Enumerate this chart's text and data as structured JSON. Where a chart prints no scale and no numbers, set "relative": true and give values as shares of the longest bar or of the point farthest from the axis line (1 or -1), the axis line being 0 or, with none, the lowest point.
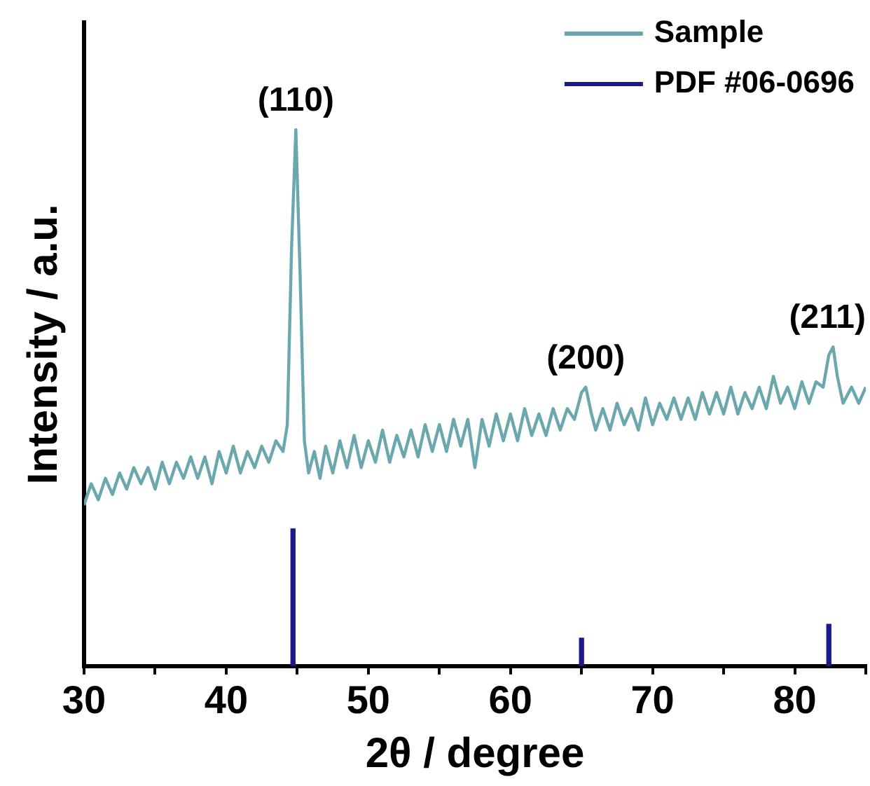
{
  "chart_data": {
    "type": "line",
    "xlabel": "2θ / degree",
    "ylabel": "Intensity / a.u.",
    "relative": true,
    "legend": "top right",
    "grid": false,
    "tick_labels": "x",
    "marker": "none",
    "line_style": "solid",
    "xlim": [
      30,
      85
    ],
    "xticks": [
      30,
      {
        "value": 35,
        "label": null
      },
      40,
      {
        "value": 45,
        "label": null
      },
      50,
      {
        "value": 55,
        "label": null
      },
      60,
      {
        "value": 65,
        "label": null
      },
      70,
      {
        "value": 75,
        "label": null
      },
      80,
      {
        "value": 85,
        "label": null
      }
    ],
    "series": [
      {
        "name": "Sample",
        "color": "#6aa8ae",
        "x": [
          30,
          30.5,
          31,
          31.5,
          32,
          32.5,
          33,
          33.5,
          34,
          34.5,
          35,
          35.5,
          36,
          36.5,
          37,
          37.5,
          38,
          38.5,
          39,
          39.5,
          40,
          40.5,
          41,
          41.5,
          42,
          42.5,
          43,
          43.5,
          44,
          44.3,
          44.6,
          44.9,
          45.2,
          45.5,
          45.8,
          46.2,
          46.6,
          47,
          47.5,
          48,
          48.5,
          49,
          49.5,
          50,
          50.5,
          51,
          51.5,
          52,
          52.5,
          53,
          53.5,
          54,
          54.5,
          55,
          55.5,
          56,
          56.5,
          57,
          57.5,
          58,
          58.5,
          59,
          59.5,
          60,
          60.5,
          61,
          61.5,
          62,
          62.5,
          63,
          63.5,
          64,
          64.5,
          65,
          65.3,
          65.7,
          66,
          66.5,
          67,
          67.5,
          68,
          68.5,
          69,
          69.5,
          70,
          70.5,
          71,
          71.5,
          72,
          72.5,
          73,
          73.5,
          74,
          74.5,
          75,
          75.5,
          76,
          76.5,
          77,
          77.5,
          78,
          78.5,
          79,
          79.5,
          80,
          80.5,
          81,
          81.5,
          82,
          82.4,
          82.7,
          83,
          83.4,
          84,
          84.5,
          85
        ],
        "values": [
          0.3,
          0.34,
          0.31,
          0.35,
          0.32,
          0.36,
          0.33,
          0.37,
          0.34,
          0.37,
          0.33,
          0.38,
          0.34,
          0.38,
          0.35,
          0.39,
          0.35,
          0.39,
          0.34,
          0.4,
          0.36,
          0.41,
          0.36,
          0.4,
          0.37,
          0.41,
          0.38,
          0.42,
          0.4,
          0.45,
          0.78,
          1,
          0.73,
          0.42,
          0.36,
          0.4,
          0.35,
          0.41,
          0.36,
          0.42,
          0.37,
          0.43,
          0.37,
          0.42,
          0.38,
          0.44,
          0.38,
          0.43,
          0.39,
          0.44,
          0.39,
          0.45,
          0.4,
          0.45,
          0.4,
          0.46,
          0.41,
          0.46,
          0.37,
          0.46,
          0.41,
          0.47,
          0.42,
          0.47,
          0.42,
          0.48,
          0.43,
          0.47,
          0.43,
          0.48,
          0.44,
          0.48,
          0.46,
          0.51,
          0.52,
          0.47,
          0.44,
          0.48,
          0.44,
          0.49,
          0.45,
          0.48,
          0.44,
          0.5,
          0.45,
          0.49,
          0.46,
          0.5,
          0.46,
          0.5,
          0.46,
          0.51,
          0.47,
          0.51,
          0.47,
          0.52,
          0.47,
          0.51,
          0.48,
          0.52,
          0.48,
          0.54,
          0.49,
          0.52,
          0.48,
          0.53,
          0.49,
          0.53,
          0.52,
          0.58,
          0.595,
          0.54,
          0.49,
          0.52,
          0.49,
          0.52
        ]
      },
      {
        "name": "PDF #06-0696",
        "type": "bar",
        "color": "#1a1a8c",
        "x": [
          44.7,
          65.0,
          82.4
        ],
        "values": [
          0.256,
          0.052,
          0.078
        ]
      }
    ],
    "annotations": [
      {
        "text": "(110)",
        "x": 44.9,
        "y": 1
      },
      {
        "text": "(200)",
        "x": 65.3,
        "y": 0.52
      },
      {
        "text": "(211)",
        "x": 82.7,
        "y": 0.595
      }
    ]
  }
}
